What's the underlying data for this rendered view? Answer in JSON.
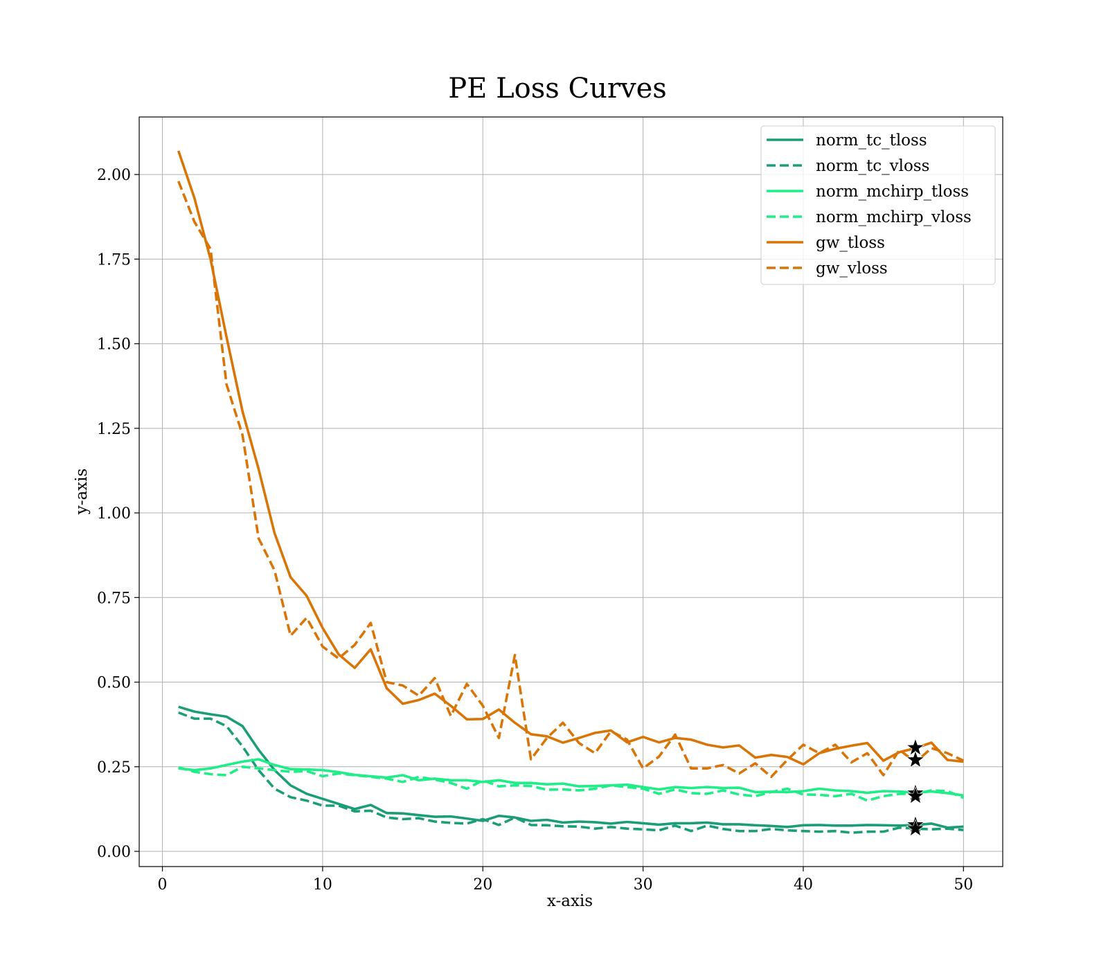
{
  "chart_data": {
    "type": "line",
    "title": "PE Loss Curves",
    "xlabel": "x-axis",
    "ylabel": "y-axis",
    "xlim": [
      -1.45,
      52.45
    ],
    "ylim": [
      -0.045,
      2.17
    ],
    "xticks": [
      0,
      10,
      20,
      30,
      40,
      50
    ],
    "xtick_labels": [
      "0",
      "10",
      "20",
      "30",
      "40",
      "50"
    ],
    "yticks": [
      0.0,
      0.25,
      0.5,
      0.75,
      1.0,
      1.25,
      1.5,
      1.75,
      2.0
    ],
    "ytick_labels": [
      "0.00",
      "0.25",
      "0.50",
      "0.75",
      "1.00",
      "1.25",
      "1.50",
      "1.75",
      "2.00"
    ],
    "grid": true,
    "legend_position": "top-right",
    "x": [
      1,
      2,
      3,
      4,
      5,
      6,
      7,
      8,
      9,
      10,
      11,
      12,
      13,
      14,
      15,
      16,
      17,
      18,
      19,
      20,
      21,
      22,
      23,
      24,
      25,
      26,
      27,
      28,
      29,
      30,
      31,
      32,
      33,
      34,
      35,
      36,
      37,
      38,
      39,
      40,
      41,
      42,
      43,
      44,
      45,
      46,
      47,
      48,
      49,
      50
    ],
    "series": [
      {
        "name": "norm_tc_tloss",
        "color": "#1b9e77",
        "dash": "solid",
        "values": [
          0.427,
          0.413,
          0.405,
          0.398,
          0.37,
          0.3,
          0.24,
          0.195,
          0.17,
          0.155,
          0.14,
          0.125,
          0.137,
          0.113,
          0.112,
          0.107,
          0.102,
          0.103,
          0.097,
          0.09,
          0.105,
          0.1,
          0.09,
          0.093,
          0.085,
          0.088,
          0.086,
          0.082,
          0.087,
          0.083,
          0.079,
          0.083,
          0.083,
          0.085,
          0.08,
          0.08,
          0.077,
          0.075,
          0.072,
          0.077,
          0.078,
          0.076,
          0.076,
          0.078,
          0.077,
          0.076,
          0.078,
          0.082,
          0.07,
          0.073
        ]
      },
      {
        "name": "norm_tc_vloss",
        "color": "#1b9e77",
        "dash": "dashed",
        "values": [
          0.41,
          0.392,
          0.392,
          0.37,
          0.31,
          0.24,
          0.185,
          0.16,
          0.15,
          0.135,
          0.135,
          0.118,
          0.12,
          0.1,
          0.095,
          0.098,
          0.088,
          0.084,
          0.082,
          0.095,
          0.078,
          0.1,
          0.078,
          0.077,
          0.074,
          0.073,
          0.067,
          0.072,
          0.067,
          0.065,
          0.062,
          0.076,
          0.06,
          0.076,
          0.066,
          0.06,
          0.06,
          0.066,
          0.062,
          0.06,
          0.058,
          0.06,
          0.055,
          0.058,
          0.058,
          0.07,
          0.067,
          0.065,
          0.067,
          0.063
        ]
      },
      {
        "name": "norm_mchirp_tloss",
        "color": "#1eed88",
        "dash": "solid",
        "values": [
          0.245,
          0.24,
          0.245,
          0.255,
          0.265,
          0.272,
          0.255,
          0.243,
          0.242,
          0.24,
          0.234,
          0.226,
          0.222,
          0.218,
          0.225,
          0.21,
          0.215,
          0.21,
          0.21,
          0.205,
          0.21,
          0.202,
          0.202,
          0.198,
          0.2,
          0.192,
          0.193,
          0.195,
          0.197,
          0.19,
          0.183,
          0.19,
          0.187,
          0.19,
          0.187,
          0.188,
          0.175,
          0.176,
          0.175,
          0.178,
          0.185,
          0.18,
          0.178,
          0.173,
          0.178,
          0.177,
          0.173,
          0.177,
          0.172,
          0.165
        ]
      },
      {
        "name": "norm_mchirp_vloss",
        "color": "#1eed88",
        "dash": "dashed",
        "values": [
          0.248,
          0.235,
          0.228,
          0.225,
          0.25,
          0.245,
          0.24,
          0.235,
          0.237,
          0.222,
          0.23,
          0.225,
          0.22,
          0.215,
          0.205,
          0.22,
          0.212,
          0.202,
          0.185,
          0.21,
          0.192,
          0.195,
          0.193,
          0.182,
          0.183,
          0.18,
          0.185,
          0.195,
          0.19,
          0.185,
          0.17,
          0.183,
          0.172,
          0.17,
          0.18,
          0.168,
          0.163,
          0.175,
          0.185,
          0.168,
          0.167,
          0.163,
          0.17,
          0.15,
          0.163,
          0.17,
          0.17,
          0.18,
          0.178,
          0.158
        ]
      },
      {
        "name": "gw_tloss",
        "color": "#d97506",
        "dash": "solid",
        "values": [
          2.07,
          1.93,
          1.75,
          1.52,
          1.3,
          1.13,
          0.94,
          0.81,
          0.755,
          0.66,
          0.582,
          0.542,
          0.597,
          0.482,
          0.436,
          0.447,
          0.466,
          0.43,
          0.39,
          0.391,
          0.419,
          0.38,
          0.346,
          0.34,
          0.321,
          0.335,
          0.35,
          0.357,
          0.322,
          0.338,
          0.322,
          0.335,
          0.33,
          0.315,
          0.307,
          0.313,
          0.277,
          0.285,
          0.279,
          0.257,
          0.29,
          0.303,
          0.312,
          0.32,
          0.268,
          0.293,
          0.305,
          0.321,
          0.27,
          0.265
        ]
      },
      {
        "name": "gw_vloss",
        "color": "#d97506",
        "dash": "dashed",
        "values": [
          1.98,
          1.86,
          1.78,
          1.38,
          1.23,
          0.925,
          0.83,
          0.637,
          0.69,
          0.605,
          0.57,
          0.61,
          0.675,
          0.5,
          0.49,
          0.46,
          0.512,
          0.4,
          0.495,
          0.43,
          0.335,
          0.58,
          0.272,
          0.335,
          0.38,
          0.32,
          0.29,
          0.355,
          0.33,
          0.245,
          0.28,
          0.345,
          0.245,
          0.245,
          0.255,
          0.23,
          0.26,
          0.22,
          0.27,
          0.315,
          0.29,
          0.315,
          0.263,
          0.29,
          0.225,
          0.3,
          0.263,
          0.305,
          0.29,
          0.268
        ]
      }
    ],
    "markers": {
      "symbol": "star",
      "color": "#000000",
      "points": [
        {
          "x": 47,
          "y": 0.306
        },
        {
          "x": 47,
          "y": 0.27
        },
        {
          "x": 47,
          "y": 0.172
        },
        {
          "x": 47,
          "y": 0.163
        },
        {
          "x": 47,
          "y": 0.078
        },
        {
          "x": 47,
          "y": 0.067
        }
      ]
    }
  }
}
